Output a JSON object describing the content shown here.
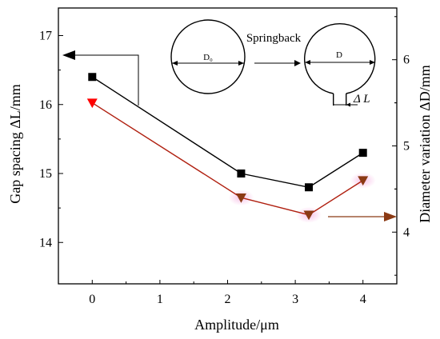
{
  "chart_data": {
    "type": "line",
    "x": [
      0,
      2.2,
      3.2,
      4
    ],
    "xlabel": "Amplitude/μm",
    "xlim": [
      -0.5,
      4.5
    ],
    "xticks": [
      "0",
      "1",
      "2",
      "3",
      "4"
    ],
    "ylabel_left": "Gap spacing ΔL/mm",
    "ylim_left": [
      13.4,
      17.4
    ],
    "yticks_left": [
      "14",
      "15",
      "16",
      "17"
    ],
    "ylabel_right": "Diameter variation ΔD/mm",
    "ylim_right": [
      3.4,
      6.6
    ],
    "yticks_right": [
      "4",
      "5",
      "6"
    ],
    "series": [
      {
        "axis": "left",
        "values": [
          16.4,
          15.0,
          14.8,
          15.3
        ],
        "color": "#000000",
        "marker": "square"
      },
      {
        "axis": "right",
        "values": [
          5.5,
          4.4,
          4.2,
          4.6
        ],
        "color": "#b02010",
        "marker_first": "#ff0000",
        "marker_rest": "#8b3a14",
        "marker": "triangle-down"
      }
    ],
    "annotations": {
      "springback": "Springback",
      "d0": "D₀",
      "d": "D",
      "delta_l": "Δ L"
    },
    "grid": false,
    "legend": "none"
  }
}
